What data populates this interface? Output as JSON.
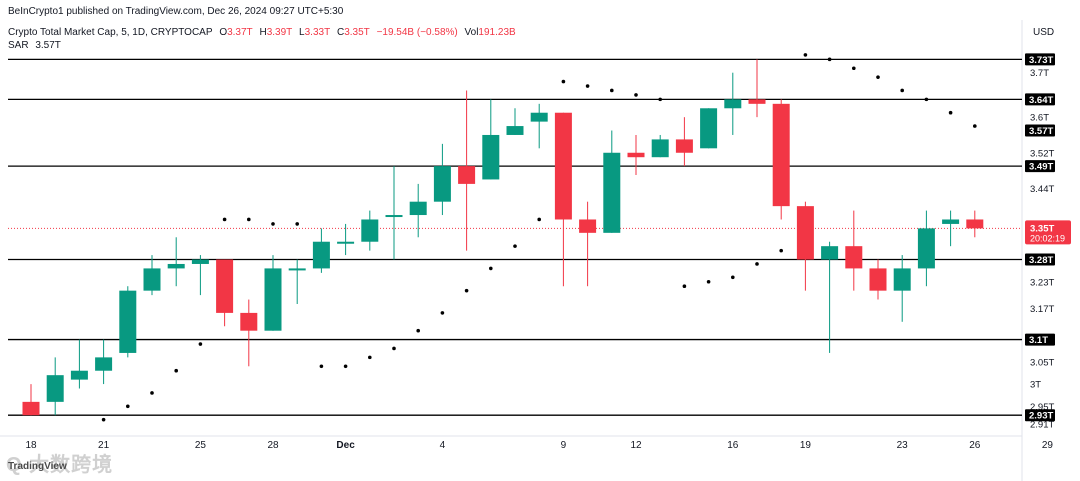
{
  "header": {
    "attribution": "BeInCrypto1 published on TradingView.com, Dec 26, 2024 09:27 UTC+5:30",
    "currency": "USD",
    "watermark": "Q 大数跨境",
    "logo_text": "TradingView"
  },
  "legend": {
    "symbol": "Crypto Total Market Cap, 5, 1D, CRYPTOCAP",
    "o_label": "O",
    "o_value": "3.37T",
    "h_label": "H",
    "h_value": "3.39T",
    "l_label": "L",
    "l_value": "3.33T",
    "c_label": "C",
    "c_value": "3.35T",
    "change": "−19.54B (−0.58%)",
    "vol_label": "Vol",
    "vol_value": "191.23B",
    "sar_label": "SAR",
    "sar_value": "3.57T"
  },
  "colors": {
    "up": "#089981",
    "down": "#f23645",
    "sar": "#000000",
    "hline": "#000000",
    "last_price": "#f23645"
  },
  "chart_data": {
    "type": "candlestick",
    "title": "Crypto Total Market Cap, 5, 1D, CRYPTOCAP",
    "ylim": [
      2.89,
      3.76
    ],
    "y_tick_labels": [
      "3.7T",
      "3.6T",
      "3.52T",
      "3.44T",
      "3.23T",
      "3.17T",
      "3.05T",
      "3T",
      "2.95T",
      "2.91T"
    ],
    "y_tick_values": [
      3.7,
      3.6,
      3.52,
      3.44,
      3.23,
      3.17,
      3.05,
      3.0,
      2.95,
      2.91
    ],
    "x_tick_labels": [
      "18",
      "21",
      "25",
      "28",
      "Dec",
      "4",
      "9",
      "12",
      "16",
      "19",
      "23",
      "26",
      "29"
    ],
    "x_tick_index": [
      0,
      3,
      7,
      10,
      13,
      17,
      22,
      25,
      29,
      32,
      36,
      39,
      42
    ],
    "horizontal_levels": [
      {
        "value": 3.73,
        "label": "3.73T"
      },
      {
        "value": 3.64,
        "label": "3.64T"
      },
      {
        "value": 3.49,
        "label": "3.49T"
      },
      {
        "value": 3.28,
        "label": "3.28T"
      },
      {
        "value": 3.1,
        "label": "3.1T"
      },
      {
        "value": 2.93,
        "label": "2.93T"
      }
    ],
    "sar_level_label": {
      "value": 3.57,
      "label": "3.57T"
    },
    "last_price": {
      "value": 3.35,
      "label": "3.35T",
      "countdown": "20:02:19"
    },
    "candles": [
      {
        "o": 2.96,
        "h": 3.0,
        "l": 2.93,
        "c": 2.93
      },
      {
        "o": 2.96,
        "h": 3.06,
        "l": 2.93,
        "c": 3.02
      },
      {
        "o": 3.01,
        "h": 3.1,
        "l": 2.99,
        "c": 3.03
      },
      {
        "o": 3.03,
        "h": 3.1,
        "l": 3.0,
        "c": 3.06
      },
      {
        "o": 3.07,
        "h": 3.22,
        "l": 3.06,
        "c": 3.21
      },
      {
        "o": 3.21,
        "h": 3.29,
        "l": 3.2,
        "c": 3.26
      },
      {
        "o": 3.26,
        "h": 3.33,
        "l": 3.22,
        "c": 3.27
      },
      {
        "o": 3.27,
        "h": 3.29,
        "l": 3.2,
        "c": 3.28
      },
      {
        "o": 3.28,
        "h": 3.28,
        "l": 3.13,
        "c": 3.16
      },
      {
        "o": 3.16,
        "h": 3.19,
        "l": 3.04,
        "c": 3.12
      },
      {
        "o": 3.12,
        "h": 3.29,
        "l": 3.12,
        "c": 3.26
      },
      {
        "o": 3.26,
        "h": 3.28,
        "l": 3.18,
        "c": 3.26
      },
      {
        "o": 3.26,
        "h": 3.35,
        "l": 3.25,
        "c": 3.32
      },
      {
        "o": 3.32,
        "h": 3.36,
        "l": 3.29,
        "c": 3.32
      },
      {
        "o": 3.32,
        "h": 3.39,
        "l": 3.3,
        "c": 3.37
      },
      {
        "o": 3.38,
        "h": 3.49,
        "l": 3.28,
        "c": 3.38
      },
      {
        "o": 3.38,
        "h": 3.45,
        "l": 3.33,
        "c": 3.41
      },
      {
        "o": 3.41,
        "h": 3.54,
        "l": 3.38,
        "c": 3.49
      },
      {
        "o": 3.49,
        "h": 3.66,
        "l": 3.3,
        "c": 3.45
      },
      {
        "o": 3.46,
        "h": 3.64,
        "l": 3.46,
        "c": 3.56
      },
      {
        "o": 3.56,
        "h": 3.62,
        "l": 3.56,
        "c": 3.58
      },
      {
        "o": 3.59,
        "h": 3.63,
        "l": 3.53,
        "c": 3.61
      },
      {
        "o": 3.61,
        "h": 3.61,
        "l": 3.22,
        "c": 3.37
      },
      {
        "o": 3.37,
        "h": 3.41,
        "l": 3.22,
        "c": 3.34
      },
      {
        "o": 3.34,
        "h": 3.57,
        "l": 3.34,
        "c": 3.52
      },
      {
        "o": 3.52,
        "h": 3.56,
        "l": 3.47,
        "c": 3.51
      },
      {
        "o": 3.51,
        "h": 3.56,
        "l": 3.51,
        "c": 3.55
      },
      {
        "o": 3.55,
        "h": 3.6,
        "l": 3.49,
        "c": 3.52
      },
      {
        "o": 3.53,
        "h": 3.62,
        "l": 3.53,
        "c": 3.62
      },
      {
        "o": 3.62,
        "h": 3.7,
        "l": 3.56,
        "c": 3.64
      },
      {
        "o": 3.64,
        "h": 3.73,
        "l": 3.6,
        "c": 3.63
      },
      {
        "o": 3.63,
        "h": 3.64,
        "l": 3.37,
        "c": 3.4
      },
      {
        "o": 3.4,
        "h": 3.41,
        "l": 3.21,
        "c": 3.28
      },
      {
        "o": 3.28,
        "h": 3.32,
        "l": 3.07,
        "c": 3.31
      },
      {
        "o": 3.31,
        "h": 3.39,
        "l": 3.21,
        "c": 3.26
      },
      {
        "o": 3.26,
        "h": 3.28,
        "l": 3.19,
        "c": 3.21
      },
      {
        "o": 3.21,
        "h": 3.29,
        "l": 3.14,
        "c": 3.26
      },
      {
        "o": 3.26,
        "h": 3.39,
        "l": 3.22,
        "c": 3.35
      },
      {
        "o": 3.36,
        "h": 3.39,
        "l": 3.31,
        "c": 3.37
      },
      {
        "o": 3.37,
        "h": 3.39,
        "l": 3.33,
        "c": 3.35
      }
    ],
    "sar_points": [
      {
        "i": 3,
        "v": 2.92
      },
      {
        "i": 4,
        "v": 2.95
      },
      {
        "i": 5,
        "v": 2.98
      },
      {
        "i": 6,
        "v": 3.03
      },
      {
        "i": 7,
        "v": 3.09
      },
      {
        "i": 8,
        "v": 3.37
      },
      {
        "i": 9,
        "v": 3.37
      },
      {
        "i": 10,
        "v": 3.36
      },
      {
        "i": 11,
        "v": 3.36
      },
      {
        "i": 12,
        "v": 3.04
      },
      {
        "i": 13,
        "v": 3.04
      },
      {
        "i": 14,
        "v": 3.06
      },
      {
        "i": 15,
        "v": 3.08
      },
      {
        "i": 16,
        "v": 3.12
      },
      {
        "i": 17,
        "v": 3.16
      },
      {
        "i": 18,
        "v": 3.21
      },
      {
        "i": 19,
        "v": 3.26
      },
      {
        "i": 20,
        "v": 3.31
      },
      {
        "i": 21,
        "v": 3.37
      },
      {
        "i": 22,
        "v": 3.68
      },
      {
        "i": 23,
        "v": 3.67
      },
      {
        "i": 24,
        "v": 3.66
      },
      {
        "i": 25,
        "v": 3.65
      },
      {
        "i": 26,
        "v": 3.64
      },
      {
        "i": 27,
        "v": 3.22
      },
      {
        "i": 28,
        "v": 3.23
      },
      {
        "i": 29,
        "v": 3.24
      },
      {
        "i": 30,
        "v": 3.27
      },
      {
        "i": 31,
        "v": 3.3
      },
      {
        "i": 32,
        "v": 3.74
      },
      {
        "i": 33,
        "v": 3.73
      },
      {
        "i": 34,
        "v": 3.71
      },
      {
        "i": 35,
        "v": 3.69
      },
      {
        "i": 36,
        "v": 3.66
      },
      {
        "i": 37,
        "v": 3.64
      },
      {
        "i": 38,
        "v": 3.61
      },
      {
        "i": 39,
        "v": 3.58
      }
    ]
  }
}
